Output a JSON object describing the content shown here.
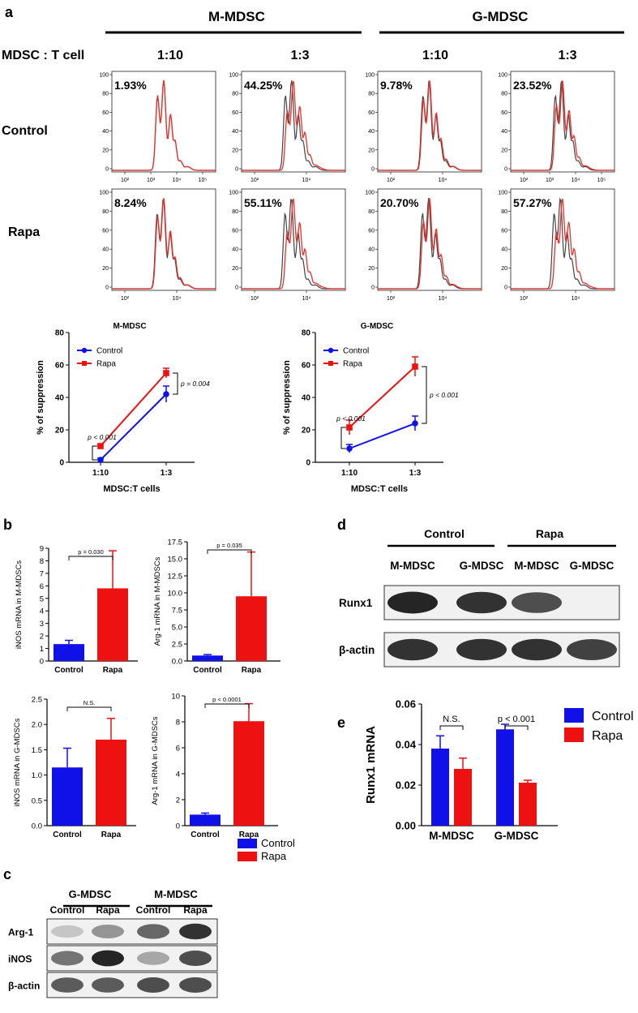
{
  "colors": {
    "control": "#1010E8",
    "rapa": "#EE1111",
    "hist_control": "#444444",
    "hist_rapa": "#E8302C"
  },
  "panel_labels": {
    "a": "a",
    "b": "b",
    "c": "c",
    "d": "d",
    "e": "e"
  },
  "panel_a": {
    "group_m": "M-MDSC",
    "group_g": "G-MDSC",
    "ratio_header": "MDSC : T cell",
    "ratios": [
      "1:10",
      "1:3",
      "1:10",
      "1:3"
    ],
    "row_labels": [
      "Control",
      "Rapa"
    ],
    "ytick_labels": [
      "100",
      "80",
      "60",
      "40",
      "20",
      "0"
    ],
    "xtick_labels": [
      "10²",
      "10³",
      "10⁴",
      "10⁵"
    ],
    "histograms": [
      [
        {
          "pct": "1.93%",
          "shift": 0.0
        },
        {
          "pct": "44.25%",
          "shift": 0.6
        },
        {
          "pct": "9.78%",
          "shift": 0.15
        },
        {
          "pct": "23.52%",
          "shift": 0.35
        }
      ],
      [
        {
          "pct": "8.24%",
          "shift": 0.12
        },
        {
          "pct": "55.11%",
          "shift": 0.7
        },
        {
          "pct": "20.70%",
          "shift": 0.3
        },
        {
          "pct": "57.27%",
          "shift": 0.72
        }
      ]
    ],
    "line_charts": [
      {
        "type": "line",
        "title": "M-MDSC",
        "ylabel": "% of suppression",
        "xlabel": "MDSC:T cells",
        "categories": [
          "1:10",
          "1:3"
        ],
        "ylim": [
          0,
          80
        ],
        "yticks": [
          "0",
          "20",
          "40",
          "60",
          "80"
        ],
        "legend": [
          "Control",
          "Rapa"
        ],
        "series": [
          {
            "name": "Control",
            "values": [
              1.5,
              42
            ],
            "errors": [
              1.0,
              5
            ]
          },
          {
            "name": "Rapa",
            "values": [
              10,
              55
            ],
            "errors": [
              1.0,
              3
            ]
          }
        ],
        "pvals": [
          "p < 0.001",
          "p = 0.004"
        ]
      },
      {
        "type": "line",
        "title": "G-MDSC",
        "ylabel": "% of suppression",
        "xlabel": "MDSC:T cells",
        "categories": [
          "1:10",
          "1:3"
        ],
        "ylim": [
          0,
          80
        ],
        "yticks": [
          "0",
          "20",
          "40",
          "60",
          "80"
        ],
        "legend": [
          "Control",
          "Rapa"
        ],
        "series": [
          {
            "name": "Control",
            "values": [
              8.5,
              24
            ],
            "errors": [
              2.5,
              4.5
            ]
          },
          {
            "name": "Rapa",
            "values": [
              21.5,
              59
            ],
            "errors": [
              4.5,
              6
            ]
          }
        ],
        "pvals": [
          "p < 0.001",
          "p < 0.001"
        ]
      }
    ]
  },
  "chart_data": [
    {
      "type": "bar",
      "ylabel": "iNOS mRNA in M-MDSCs",
      "categories": [
        "Control",
        "Rapa"
      ],
      "values": [
        1.35,
        5.8
      ],
      "errors": [
        0.3,
        3.0
      ],
      "ylim": [
        0,
        9
      ],
      "yticks": [
        "0",
        "1",
        "2",
        "3",
        "4",
        "5",
        "6",
        "7",
        "8",
        "9"
      ],
      "pval": "p = 0.030"
    },
    {
      "type": "bar",
      "ylabel": "Arg-1 mRNA in M-MDSCs",
      "categories": [
        "Control",
        "Rapa"
      ],
      "values": [
        0.8,
        9.5
      ],
      "errors": [
        0.15,
        6.5
      ],
      "ylim": [
        0,
        17.5
      ],
      "yticks": [
        "0.0",
        "2.5",
        "5.0",
        "7.5",
        "10.0",
        "12.5",
        "15.0",
        "17.5"
      ],
      "pval": "p = 0.035"
    },
    {
      "type": "bar",
      "ylabel": "iNOS mRNA in G-MDSCs",
      "categories": [
        "Control",
        "Rapa"
      ],
      "values": [
        1.15,
        1.7
      ],
      "errors": [
        0.38,
        0.42
      ],
      "ylim": [
        0,
        2.5
      ],
      "yticks": [
        "0.0",
        "0.5",
        "1.0",
        "1.5",
        "2.0",
        "2.5"
      ],
      "pval": "N.S."
    },
    {
      "type": "bar",
      "ylabel": "Arg-1 mRNA in G-MDSCs",
      "categories": [
        "Control",
        "Rapa"
      ],
      "values": [
        0.85,
        8.05
      ],
      "errors": [
        0.12,
        1.35
      ],
      "ylim": [
        0,
        10
      ],
      "yticks": [
        "0",
        "2",
        "4",
        "6",
        "8",
        "10"
      ],
      "pval": "p < 0.0001"
    },
    {
      "type": "bar",
      "title": "",
      "ylabel": "Runx1 mRNA",
      "categories": [
        "M-MDSC",
        "G-MDSC"
      ],
      "series": [
        {
          "name": "Control",
          "values": [
            0.038,
            0.0475
          ],
          "errors": [
            0.0063,
            0.0025
          ]
        },
        {
          "name": "Rapa",
          "values": [
            0.028,
            0.0212
          ],
          "errors": [
            0.0053,
            0.0012
          ]
        }
      ],
      "ylim": [
        0,
        0.06
      ],
      "yticks": [
        "0.00",
        "0.02",
        "0.04",
        "0.06"
      ],
      "pvals": [
        "N.S.",
        "p < 0.001"
      ],
      "legend": [
        "Control",
        "Rapa"
      ]
    }
  ],
  "panel_b_legend": [
    "Control",
    "Rapa"
  ],
  "panel_c": {
    "groups": [
      "G-MDSC",
      "M-MDSC"
    ],
    "lanes": [
      "Control",
      "Rapa",
      "Control",
      "Rapa"
    ],
    "rows": [
      {
        "label": "Arg-1",
        "intensities": [
          0.25,
          0.55,
          0.75,
          0.95
        ]
      },
      {
        "label": "iNOS",
        "intensities": [
          0.7,
          1.0,
          0.45,
          0.85
        ]
      },
      {
        "label": "β-actin",
        "intensities": [
          0.8,
          0.8,
          0.85,
          0.85
        ]
      }
    ]
  },
  "panel_d": {
    "groups": [
      "Control",
      "Rapa"
    ],
    "lanes": [
      "M-MDSC",
      "G-MDSC",
      "M-MDSC",
      "G-MDSC"
    ],
    "rows": [
      {
        "label": "Runx1",
        "intensities": [
          1.0,
          0.95,
          0.85,
          0.0
        ]
      },
      {
        "label": "β-actin",
        "intensities": [
          0.95,
          0.95,
          0.95,
          0.9
        ]
      }
    ]
  }
}
